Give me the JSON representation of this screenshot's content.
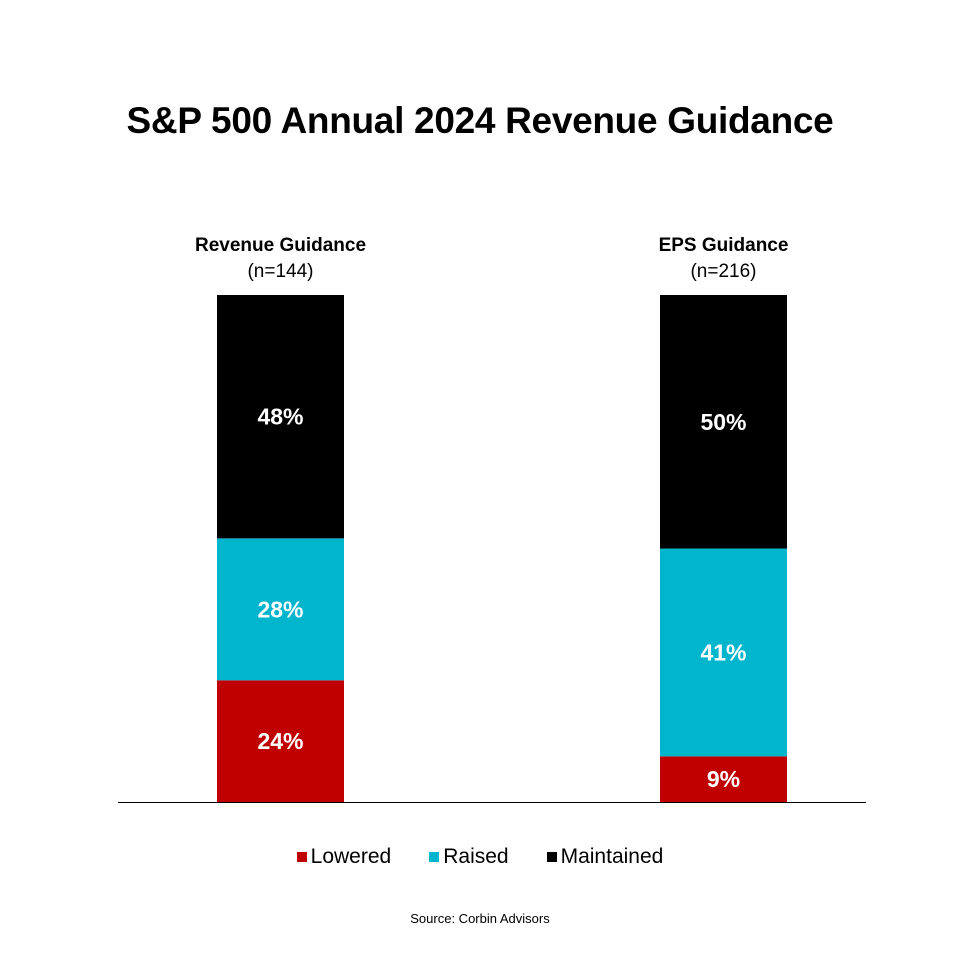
{
  "chart_data": {
    "type": "bar",
    "stacked": true,
    "title": "S&P 500 Annual 2024 Revenue Guidance",
    "categories": [
      {
        "label": "Revenue Guidance",
        "sublabel": "(n=144)"
      },
      {
        "label": "EPS Guidance",
        "sublabel": "(n=216)"
      }
    ],
    "series": [
      {
        "name": "Lowered",
        "color": "#c00000",
        "values": [
          24,
          9
        ],
        "labels": [
          "24%",
          "9%"
        ]
      },
      {
        "name": "Raised",
        "color": "#00b5cc",
        "values": [
          28,
          41
        ],
        "labels": [
          "28%",
          "41%"
        ]
      },
      {
        "name": "Maintained",
        "color": "#000000",
        "values": [
          48,
          50
        ],
        "labels": [
          "48%",
          "50%"
        ]
      }
    ],
    "ylim": [
      0,
      100
    ],
    "xlabel": "",
    "ylabel": "",
    "grid": false,
    "legend_position": "bottom",
    "source": "Source: Corbin Advisors"
  }
}
